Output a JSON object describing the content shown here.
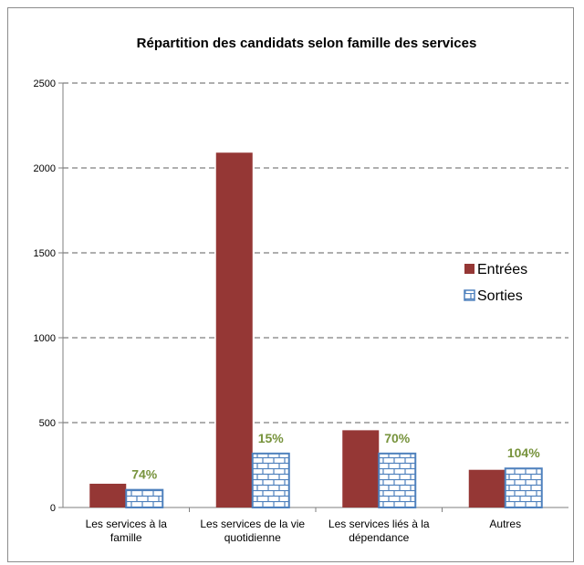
{
  "chart_data": {
    "type": "bar",
    "title": "Répartition des candidats selon  famille des services",
    "categories": [
      [
        "Les services à la",
        "famille"
      ],
      [
        "Les services de la vie",
        "quotidienne"
      ],
      [
        "Les services liés à la",
        "dépendance"
      ],
      [
        "Autres"
      ]
    ],
    "series": [
      {
        "name": "Entrées",
        "values": [
          140,
          2090,
          455,
          222
        ],
        "color": "#953735"
      },
      {
        "name": "Sorties",
        "values": [
          104,
          318,
          318,
          230
        ],
        "color": "#4f81bd"
      }
    ],
    "percent_labels": [
      "74%",
      "15%",
      "70%",
      "104%"
    ],
    "percent_color": "#77933c",
    "ylim": [
      0,
      2500
    ],
    "yticks": [
      0,
      500,
      1000,
      1500,
      2000,
      2500
    ],
    "grid": true,
    "legend_position": "right"
  }
}
